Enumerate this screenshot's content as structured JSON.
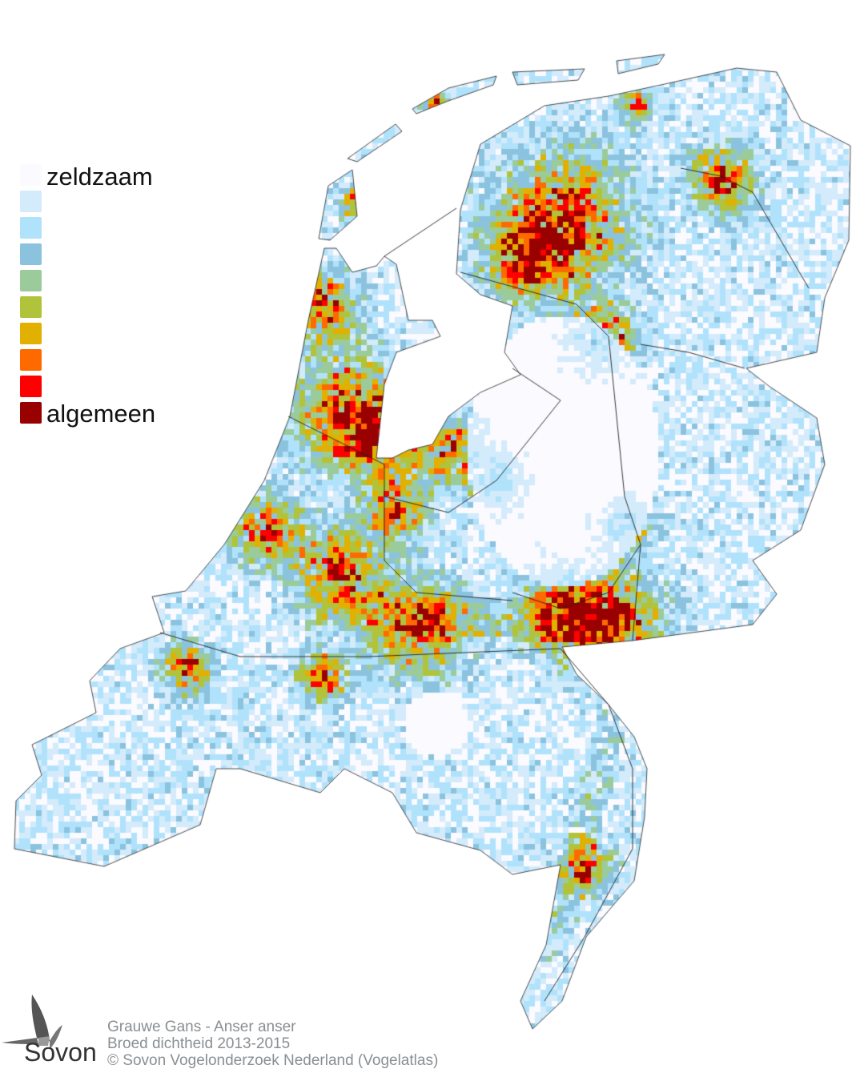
{
  "legend": {
    "top_label": "zeldzaam",
    "bottom_label": "algemeen",
    "colors": [
      "#fafaff",
      "#d3ebfb",
      "#b1e2fb",
      "#8bc3df",
      "#9bcb9a",
      "#b1c33a",
      "#e2b000",
      "#ff6a00",
      "#ff0000",
      "#990000"
    ]
  },
  "caption": {
    "line1": "Grauwe Gans - Anser anser",
    "line2": "Broed dichtheid 2013-2015",
    "line3": "© Sovon Vogelonderzoek Nederland (Vogelatlas)"
  },
  "logo": {
    "text": "Sovon",
    "icon": "swallow-icon"
  }
}
